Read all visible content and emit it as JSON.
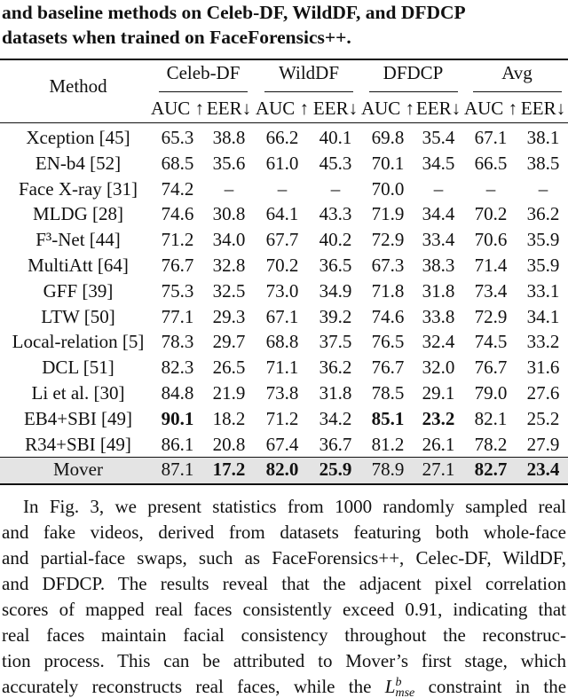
{
  "caption": {
    "lines": [
      "and baseline methods on Celeb-DF, WildDF, and DFDCP",
      "datasets when trained on FaceForensics++."
    ]
  },
  "table": {
    "method_header": "Method",
    "groups": [
      "Celeb-DF",
      "WildDF",
      "DFDCP",
      "Avg"
    ],
    "metrics": [
      "AUC ↑",
      "EER↓"
    ],
    "rows": [
      {
        "method": "Xception [45]",
        "values": [
          "65.3",
          "38.8",
          "66.2",
          "40.1",
          "69.8",
          "35.4",
          "67.1",
          "38.1"
        ],
        "bold": []
      },
      {
        "method": "EN-b4 [52]",
        "values": [
          "68.5",
          "35.6",
          "61.0",
          "45.3",
          "70.1",
          "34.5",
          "66.5",
          "38.5"
        ],
        "bold": []
      },
      {
        "method": "Face X-ray [31]",
        "values": [
          "74.2",
          "–",
          "–",
          "–",
          "70.0",
          "–",
          "–",
          "–"
        ],
        "bold": []
      },
      {
        "method": "MLDG [28]",
        "values": [
          "74.6",
          "30.8",
          "64.1",
          "43.3",
          "71.9",
          "34.4",
          "70.2",
          "36.2"
        ],
        "bold": []
      },
      {
        "method": "F³-Net [44]",
        "values": [
          "71.2",
          "34.0",
          "67.7",
          "40.2",
          "72.9",
          "33.4",
          "70.6",
          "35.9"
        ],
        "bold": []
      },
      {
        "method": "MultiAtt [64]",
        "values": [
          "76.7",
          "32.8",
          "70.2",
          "36.5",
          "67.3",
          "38.3",
          "71.4",
          "35.9"
        ],
        "bold": []
      },
      {
        "method": "GFF [39]",
        "values": [
          "75.3",
          "32.5",
          "73.0",
          "34.9",
          "71.8",
          "31.8",
          "73.4",
          "33.1"
        ],
        "bold": []
      },
      {
        "method": "LTW [50]",
        "values": [
          "77.1",
          "29.3",
          "67.1",
          "39.2",
          "74.6",
          "33.8",
          "72.9",
          "34.1"
        ],
        "bold": []
      },
      {
        "method": "Local-relation [5]",
        "values": [
          "78.3",
          "29.7",
          "68.8",
          "37.5",
          "76.5",
          "32.4",
          "74.5",
          "33.2"
        ],
        "bold": []
      },
      {
        "method": "DCL [51]",
        "values": [
          "82.3",
          "26.5",
          "71.1",
          "36.2",
          "76.7",
          "32.0",
          "76.7",
          "31.6"
        ],
        "bold": []
      },
      {
        "method": "Li et al. [30]",
        "values": [
          "84.8",
          "21.9",
          "73.8",
          "31.8",
          "78.5",
          "29.1",
          "79.0",
          "27.6"
        ],
        "bold": []
      },
      {
        "method": "EB4+SBI [49]",
        "values": [
          "90.1",
          "18.2",
          "71.2",
          "34.2",
          "85.1",
          "23.2",
          "82.1",
          "25.2"
        ],
        "bold": [
          0,
          4,
          5
        ]
      },
      {
        "method": "R34+SBI [49]",
        "values": [
          "86.1",
          "20.8",
          "67.4",
          "36.7",
          "81.2",
          "26.1",
          "78.2",
          "27.9"
        ],
        "bold": []
      },
      {
        "method": "Mover",
        "values": [
          "87.1",
          "17.2",
          "82.0",
          "25.9",
          "78.9",
          "27.1",
          "82.7",
          "23.4"
        ],
        "bold": [
          1,
          2,
          3,
          6,
          7
        ],
        "highlight": true
      }
    ]
  },
  "paragraph": {
    "lines": [
      "In Fig. 3, we present statistics from 1000 randomly sampled real",
      "and fake videos, derived from datasets featuring both whole-face",
      "and partial-face swaps, such as FaceForensics++, Celec-DF, WildDF,",
      "and DFDCP. The results reveal that the adjacent pixel correlation",
      "scores of mapped real faces consistently exceed 0.91, indicating that",
      "real faces maintain facial consistency throughout the reconstruc-",
      "tion process. This can be attributed to Mover’s first stage, which"
    ],
    "last_line": {
      "before": "accurately reconstructs real faces, while the",
      "math_base": "L",
      "math_sup": "b",
      "math_sub": "mse",
      "after": "constraint in the"
    }
  }
}
